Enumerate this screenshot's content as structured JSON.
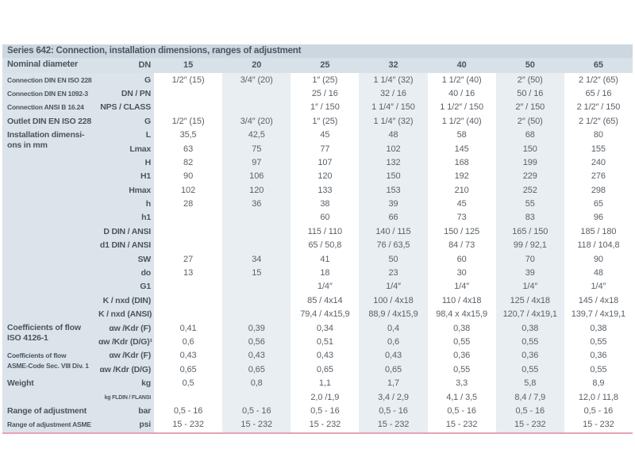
{
  "title": "Series 642: Connection, installation dimensions, ranges of adjustment",
  "header": {
    "group": "Nominal diameter",
    "unit": "DN",
    "columns": [
      "15",
      "20",
      "25",
      "32",
      "40",
      "50",
      "65"
    ]
  },
  "rows": [
    {
      "group": "Connection DIN EN ISO 228",
      "span": 1,
      "small": true,
      "unit": "G",
      "values": [
        "1/2″ (15)",
        "3/4″ (20)",
        "1″ (25)",
        "1 1/4″ (32)",
        "1 1/2″ (40)",
        "2″ (50)",
        "2 1/2″ (65)"
      ]
    },
    {
      "group": "Connection DIN EN 1092-3",
      "span": 1,
      "small": true,
      "unit": "DN / PN",
      "values": [
        "",
        "",
        "25 / 16",
        "32 / 16",
        "40 / 16",
        "50 / 16",
        "65 / 16"
      ]
    },
    {
      "group": "Connection ANSI B 16.24",
      "span": 1,
      "small": true,
      "unit": "NPS / CLASS",
      "values": [
        "",
        "",
        "1″ / 150",
        "1 1/4″ / 150",
        "1 1/2″ / 150",
        "2″ / 150",
        "2 1/2″ / 150"
      ]
    },
    {
      "group": "Outlet DIN EN ISO 228",
      "span": 1,
      "unit": "G",
      "values": [
        "1/2″ (15)",
        "3/4″ (20)",
        "1″ (25)",
        "1 1/4″ (32)",
        "1 1/2″ (40)",
        "2″ (50)",
        "2 1/2″ (65)"
      ]
    },
    {
      "group": "Installation dimensi-\nons in mm",
      "span": 14,
      "unit": "L",
      "values": [
        "35,5",
        "42,5",
        "45",
        "48",
        "58",
        "68",
        "80"
      ]
    },
    {
      "unit": "Lmax",
      "values": [
        "63",
        "75",
        "77",
        "102",
        "145",
        "150",
        "155"
      ]
    },
    {
      "unit": "H",
      "values": [
        "82",
        "97",
        "107",
        "132",
        "168",
        "199",
        "240"
      ]
    },
    {
      "unit": "H1",
      "values": [
        "90",
        "106",
        "120",
        "150",
        "192",
        "229",
        "276"
      ]
    },
    {
      "unit": "Hmax",
      "values": [
        "102",
        "120",
        "133",
        "153",
        "210",
        "252",
        "298"
      ]
    },
    {
      "unit": "h",
      "values": [
        "28",
        "36",
        "38",
        "39",
        "45",
        "55",
        "65"
      ]
    },
    {
      "unit": "h1",
      "values": [
        "",
        "",
        "60",
        "66",
        "73",
        "83",
        "96"
      ]
    },
    {
      "unit": "D DIN / ANSI",
      "values": [
        "",
        "",
        "115 / 110",
        "140 / 115",
        "150 / 125",
        "165 / 150",
        "185 / 180"
      ]
    },
    {
      "unit": "d1 DIN / ANSI",
      "values": [
        "",
        "",
        "65 / 50,8",
        "76 / 63,5",
        "84 / 73",
        "99 / 92,1",
        "118 / 104,8"
      ]
    },
    {
      "unit": "SW",
      "values": [
        "27",
        "34",
        "41",
        "50",
        "60",
        "70",
        "90"
      ]
    },
    {
      "unit": "do",
      "values": [
        "13",
        "15",
        "18",
        "23",
        "30",
        "39",
        "48"
      ]
    },
    {
      "unit": "G1",
      "values": [
        "",
        "",
        "1/4″",
        "1/4″",
        "1/4″",
        "1/4″",
        "1/4″"
      ]
    },
    {
      "unit": "K / nxd (DIN)",
      "values": [
        "",
        "",
        "85 / 4x14",
        "100 / 4x18",
        "110 / 4x18",
        "125 / 4x18",
        "145 / 4x18"
      ]
    },
    {
      "unit": "K / nxd (ANSI)",
      "values": [
        "",
        "",
        "79,4 / 4x15,9",
        "88,9 / 4x15,9",
        "98,4 x 4x15,9",
        "120,7 / 4x19,1",
        "139,7 / 4x19,1"
      ]
    },
    {
      "group": "Coefficients of flow\nISO 4126-1",
      "span": 2,
      "unit": "αw /Kdr (F)",
      "values": [
        "0,41",
        "0,39",
        "0,34",
        "0,4",
        "0,38",
        "0,38",
        "0,38"
      ]
    },
    {
      "unit": "αw /Kdr (D/G)¹",
      "values": [
        "0,6",
        "0,56",
        "0,51",
        "0,6",
        "0,55",
        "0,55",
        "0,55"
      ]
    },
    {
      "group": "Coefficients of flow\nASME-Code Sec. VIII Div. 1",
      "span": 2,
      "small": true,
      "unit": "αw /Kdr (F)",
      "values": [
        "0,43",
        "0,43",
        "0,43",
        "0,43",
        "0,36",
        "0,36",
        "0,36"
      ]
    },
    {
      "unit": "αw /Kdr (D/G)",
      "values": [
        "0,65",
        "0,65",
        "0,65",
        "0,65",
        "0,55",
        "0,55",
        "0,55"
      ]
    },
    {
      "group": "Weight",
      "span": 2,
      "unit": "kg",
      "values": [
        "0,5",
        "0,8",
        "1,1",
        "1,7",
        "3,3",
        "5,8",
        "8,9"
      ]
    },
    {
      "unit": "kg FLDIN / FLANSI",
      "tiny": true,
      "values": [
        "",
        "",
        "2,0 /1,9",
        "3,4 / 2,9",
        "4,1 / 3,5",
        "8,4 / 7,9",
        "12,0 / 11,8"
      ]
    },
    {
      "group": "Range of adjustment",
      "span": 1,
      "unit": "bar",
      "values": [
        "0,5 - 16",
        "0,5 - 16",
        "0,5 - 16",
        "0,5 - 16",
        "0,5 - 16",
        "0,5 - 16",
        "0,5 - 16"
      ]
    },
    {
      "group": "Range of adjustment ASME",
      "span": 1,
      "small": true,
      "unit": "psi",
      "values": [
        "15 - 232",
        "15 - 232",
        "15 - 232",
        "15 - 232",
        "15 - 232",
        "15 - 232",
        "15 - 232"
      ]
    }
  ]
}
